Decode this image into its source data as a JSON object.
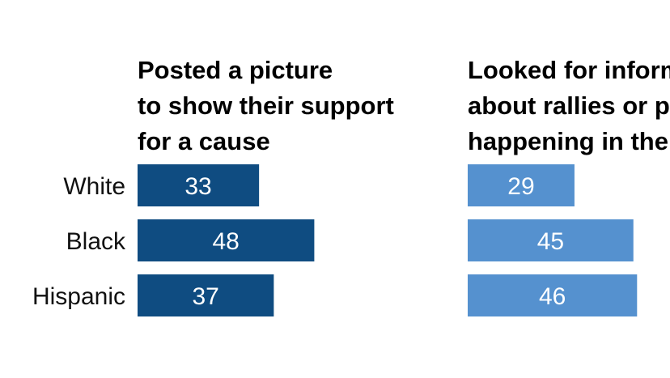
{
  "chart_data": {
    "type": "bar",
    "orientation": "horizontal",
    "categories": [
      "White",
      "Black",
      "Hispanic"
    ],
    "panels": [
      {
        "title_lines": [
          "Posted a picture",
          "to show their support",
          "for a cause"
        ],
        "color": "#0f4c81",
        "values": [
          33,
          48,
          37
        ]
      },
      {
        "title_lines": [
          "Looked for information",
          "about rallies or protests",
          "happening in their area"
        ],
        "color": "#5591cf",
        "values": [
          29,
          45,
          46
        ]
      }
    ],
    "grid": false,
    "legend": "none"
  }
}
